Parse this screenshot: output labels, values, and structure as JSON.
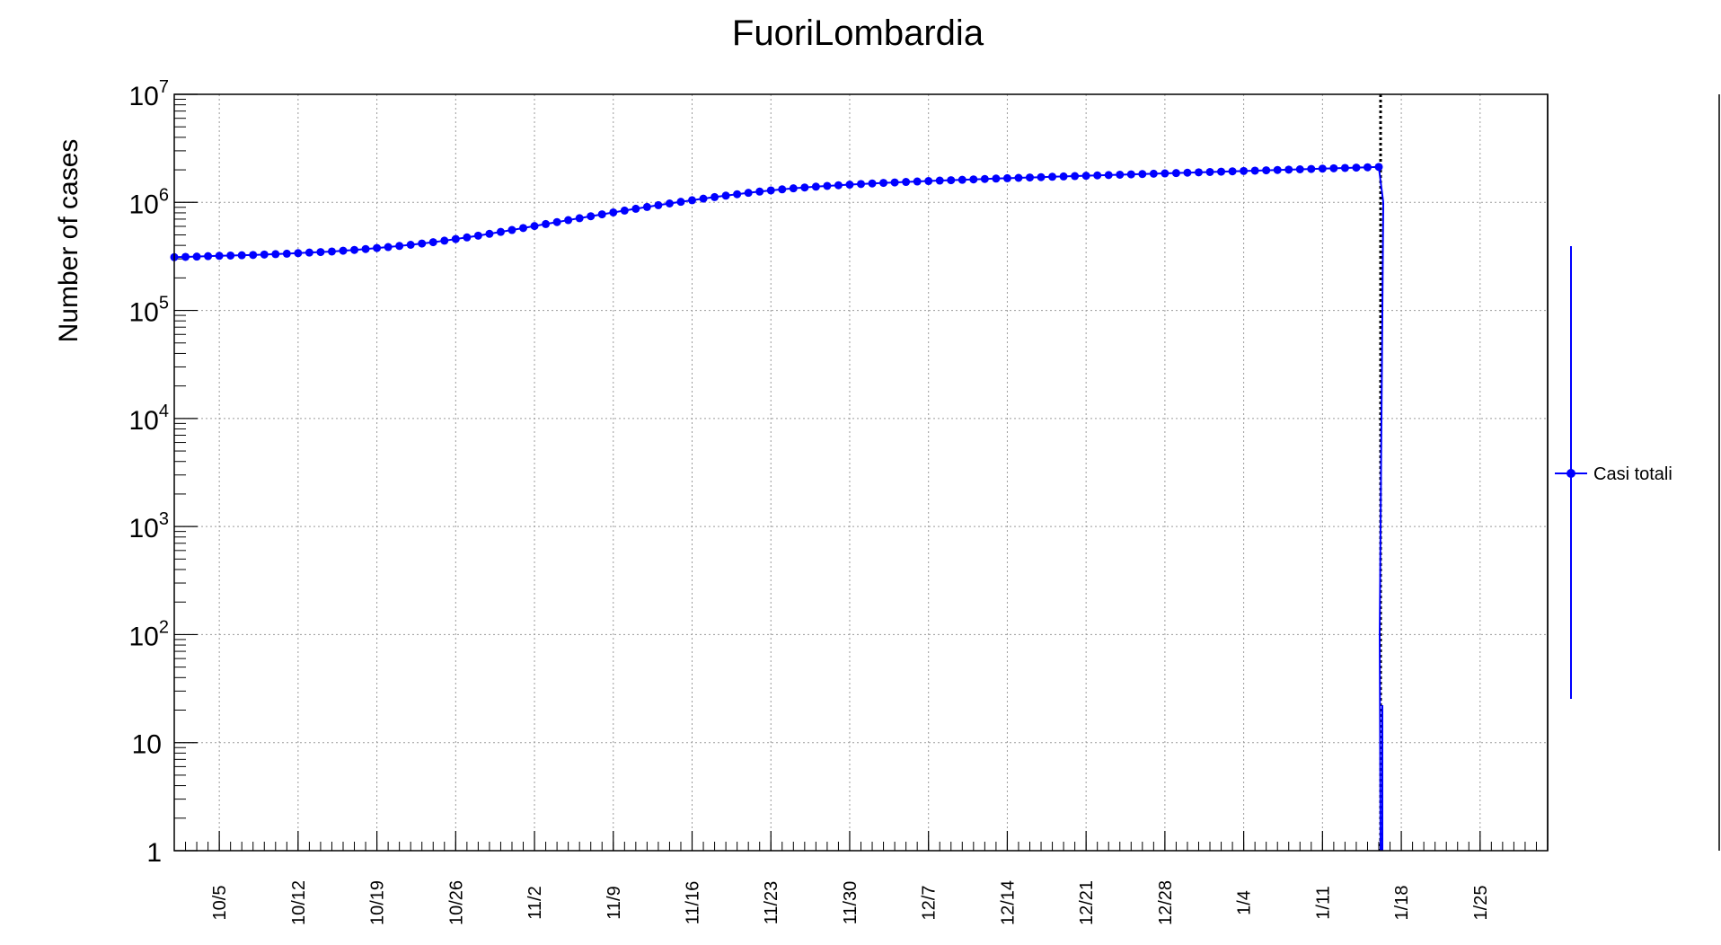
{
  "chart_data": {
    "type": "line",
    "title": "FuoriLombardia",
    "ylabel": "Number of cases",
    "xlabel": "",
    "y_scale": "log",
    "ylim": [
      1,
      10000000
    ],
    "grid": true,
    "x_range": [
      "2020-10-01",
      "2021-01-31"
    ],
    "x_tick_labels": [
      "10/5",
      "10/12",
      "10/19",
      "10/26",
      "11/2",
      "11/9",
      "11/16",
      "11/23",
      "11/30",
      "12/7",
      "12/14",
      "12/21",
      "12/28",
      "1/4",
      "1/11",
      "1/18",
      "1/25"
    ],
    "y_tick_labels": [
      {
        "value": 1,
        "text": "1"
      },
      {
        "value": 10,
        "text": "10"
      },
      {
        "value": 100,
        "base": "10",
        "exp": "2"
      },
      {
        "value": 1000,
        "base": "10",
        "exp": "3"
      },
      {
        "value": 10000,
        "base": "10",
        "exp": "4"
      },
      {
        "value": 100000,
        "base": "10",
        "exp": "5"
      },
      {
        "value": 1000000,
        "base": "10",
        "exp": "6"
      },
      {
        "value": 10000000,
        "base": "10",
        "exp": "7"
      }
    ],
    "marker_line": {
      "date": "2021-01-16",
      "style": "dotted"
    },
    "series": [
      {
        "name": "Casi totali",
        "color": "#0000ff",
        "first_date": "2020-10-01",
        "values": [
          311000,
          313000,
          315000,
          318000,
          320000,
          322000,
          324000,
          326000,
          329000,
          332000,
          335000,
          339000,
          343000,
          347000,
          351000,
          357000,
          363000,
          370000,
          378000,
          386000,
          395000,
          405000,
          416000,
          428000,
          442000,
          458000,
          474000,
          492000,
          512000,
          533000,
          555000,
          579000,
          604000,
          630000,
          657000,
          685000,
          714000,
          744000,
          775000,
          807000,
          840000,
          873000,
          907000,
          942000,
          977000,
          1012000,
          1047000,
          1083000,
          1119000,
          1155000,
          1190000,
          1225000,
          1258000,
          1290000,
          1320000,
          1348000,
          1374000,
          1398000,
          1420000,
          1440000,
          1460000,
          1479000,
          1497000,
          1514000,
          1530000,
          1546000,
          1561000,
          1576000,
          1590000,
          1604000,
          1618000,
          1632000,
          1646000,
          1660000,
          1673000,
          1686000,
          1699000,
          1712000,
          1725000,
          1738000,
          1751000,
          1764000,
          1777000,
          1790000,
          1803000,
          1816000,
          1829000,
          1842000,
          1855000,
          1868000,
          1882000,
          1896000,
          1910000,
          1924000,
          1938000,
          1952000,
          1966000,
          1980000,
          1994000,
          2008000,
          2022000,
          2037000,
          2052000,
          2067000,
          2082000,
          2097000,
          2112000,
          2127000
        ]
      }
    ],
    "error_bar": {
      "low": 25,
      "high": 400000
    }
  }
}
